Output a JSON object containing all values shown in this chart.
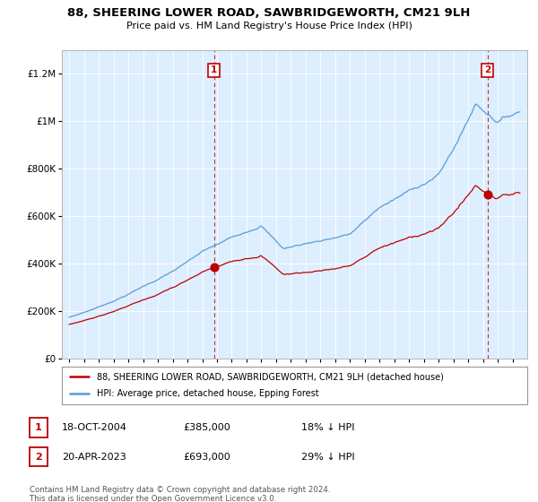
{
  "title": "88, SHEERING LOWER ROAD, SAWBRIDGEWORTH, CM21 9LH",
  "subtitle": "Price paid vs. HM Land Registry's House Price Index (HPI)",
  "legend_line1": "88, SHEERING LOWER ROAD, SAWBRIDGEWORTH, CM21 9LH (detached house)",
  "legend_line2": "HPI: Average price, detached house, Epping Forest",
  "footnote": "Contains HM Land Registry data © Crown copyright and database right 2024.\nThis data is licensed under the Open Government Licence v3.0.",
  "sale1_date": "18-OCT-2004",
  "sale1_price": 385000,
  "sale1_year": 2004.8,
  "sale2_date": "20-APR-2023",
  "sale2_price": 693000,
  "sale2_year": 2023.3,
  "sale1_info": "18-OCT-2004",
  "sale1_price_str": "£385,000",
  "sale1_hpi_str": "18% ↓ HPI",
  "sale2_info": "20-APR-2023",
  "sale2_price_str": "£693,000",
  "sale2_hpi_str": "29% ↓ HPI",
  "hpi_color": "#5b9bd5",
  "price_color": "#c00000",
  "vline_color": "#c00000",
  "bg_chart": "#ddeeff",
  "background_color": "#ffffff",
  "ylim": [
    0,
    1300000
  ],
  "xlim_start": 1994.5,
  "xlim_end": 2026.0
}
